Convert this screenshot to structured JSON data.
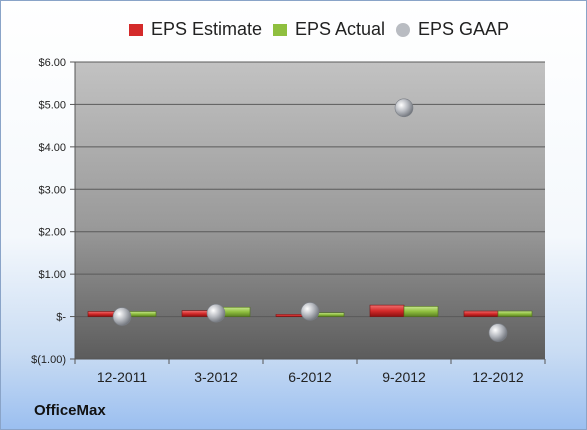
{
  "legend": {
    "estimate_label": "EPS Estimate",
    "actual_label": "EPS Actual",
    "gaap_label": "EPS GAAP"
  },
  "company": "OfficeMax",
  "colors": {
    "estimate": "#d42a2a",
    "actual": "#8fbf3f",
    "gaap": "#b9bcc2",
    "plot_top": "#c2c2c2",
    "plot_bottom": "#5c5c5c"
  },
  "chart_data": {
    "type": "bar",
    "categories": [
      "12-2011",
      "3-2012",
      "6-2012",
      "9-2012",
      "12-2012"
    ],
    "series": [
      {
        "name": "EPS Estimate",
        "type": "bar",
        "values": [
          0.12,
          0.14,
          0.05,
          0.27,
          0.13
        ]
      },
      {
        "name": "EPS Actual",
        "type": "bar",
        "values": [
          0.12,
          0.22,
          0.09,
          0.24,
          0.13
        ]
      },
      {
        "name": "EPS GAAP",
        "type": "scatter",
        "values": [
          0.0,
          0.08,
          0.12,
          4.92,
          -0.38
        ]
      }
    ],
    "ylim": [
      -1,
      6
    ],
    "yticks": [
      -1,
      0,
      1,
      2,
      3,
      4,
      5,
      6
    ],
    "ytick_labels": [
      "$(1.00)",
      "$-",
      "$1.00",
      "$2.00",
      "$3.00",
      "$4.00",
      "$5.00",
      "$6.00"
    ],
    "grid": true,
    "legend_position": "top"
  }
}
